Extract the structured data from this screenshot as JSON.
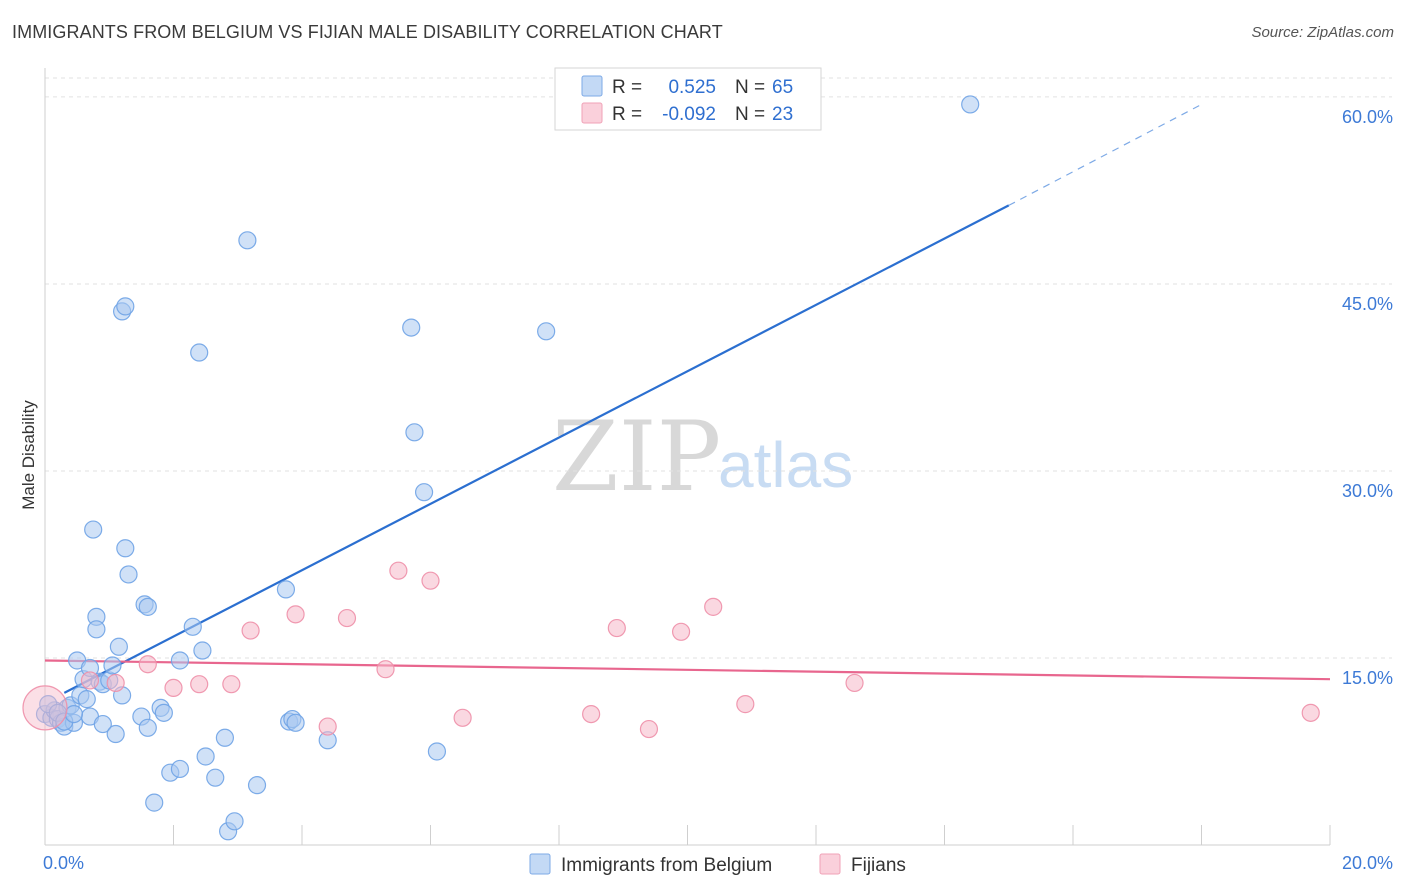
{
  "header": {
    "title": "IMMIGRANTS FROM BELGIUM VS FIJIAN MALE DISABILITY CORRELATION CHART",
    "source": "Source: ZipAtlas.com"
  },
  "watermark": {
    "zip": "ZIP",
    "atlas": "atlas"
  },
  "legend": {
    "r_label": "R =",
    "n_label": "N =",
    "rows": [
      {
        "r": "0.525",
        "n": "65",
        "color": "#a9c8f0"
      },
      {
        "r": "-0.092",
        "n": "23",
        "color": "#f6b8c8"
      }
    ]
  },
  "chart_data": {
    "type": "scatter",
    "title": "IMMIGRANTS FROM BELGIUM VS FIJIAN MALE DISABILITY CORRELATION CHART",
    "xlabel": "",
    "ylabel": "Male Disability",
    "xlim": [
      0,
      20
    ],
    "ylim": [
      0,
      62
    ],
    "x_tick_labels": [
      "0.0%",
      "20.0%"
    ],
    "y_ticks": [
      15,
      30,
      45,
      60
    ],
    "y_tick_labels": [
      "15.0%",
      "30.0%",
      "45.0%",
      "60.0%"
    ],
    "grid": true,
    "legend_position": "top-center",
    "series": [
      {
        "name": "Immigrants from Belgium",
        "color": "#6fa3e6",
        "fill": "#a9c8f0",
        "trend": {
          "x": [
            0.3,
            15.0
          ],
          "y": [
            12.2,
            51.3
          ],
          "dashed_to": [
            18.0,
            59.4
          ],
          "color": "#2b6fd0"
        },
        "points": [
          [
            0.0,
            10.5
          ],
          [
            0.1,
            10.2
          ],
          [
            0.15,
            10.8
          ],
          [
            0.2,
            10.1
          ],
          [
            0.25,
            9.8
          ],
          [
            0.3,
            9.5
          ],
          [
            0.35,
            11.0
          ],
          [
            0.4,
            11.2
          ],
          [
            0.45,
            9.8
          ],
          [
            0.5,
            14.8
          ],
          [
            0.55,
            12.0
          ],
          [
            0.6,
            13.3
          ],
          [
            0.65,
            11.7
          ],
          [
            0.7,
            14.2
          ],
          [
            0.7,
            10.3
          ],
          [
            0.75,
            25.3
          ],
          [
            0.8,
            18.3
          ],
          [
            0.8,
            17.3
          ],
          [
            0.85,
            13.1
          ],
          [
            0.9,
            12.9
          ],
          [
            0.9,
            9.7
          ],
          [
            1.0,
            13.2
          ],
          [
            1.05,
            14.4
          ],
          [
            1.1,
            8.9
          ],
          [
            1.15,
            15.9
          ],
          [
            1.2,
            12.0
          ],
          [
            1.2,
            42.8
          ],
          [
            1.25,
            43.2
          ],
          [
            1.25,
            23.8
          ],
          [
            1.3,
            21.7
          ],
          [
            1.5,
            10.3
          ],
          [
            1.55,
            19.3
          ],
          [
            1.6,
            19.1
          ],
          [
            1.6,
            9.4
          ],
          [
            1.7,
            3.4
          ],
          [
            1.8,
            11.0
          ],
          [
            1.85,
            10.6
          ],
          [
            1.95,
            5.8
          ],
          [
            2.1,
            14.8
          ],
          [
            2.1,
            6.1
          ],
          [
            2.3,
            17.5
          ],
          [
            2.4,
            39.5
          ],
          [
            2.45,
            15.6
          ],
          [
            2.5,
            7.1
          ],
          [
            2.65,
            5.4
          ],
          [
            2.8,
            8.6
          ],
          [
            2.85,
            1.1
          ],
          [
            2.95,
            1.9
          ],
          [
            3.15,
            48.5
          ],
          [
            3.3,
            4.8
          ],
          [
            3.75,
            20.5
          ],
          [
            3.8,
            9.9
          ],
          [
            3.85,
            10.1
          ],
          [
            3.9,
            9.8
          ],
          [
            4.4,
            8.4
          ],
          [
            5.7,
            41.5
          ],
          [
            5.75,
            33.1
          ],
          [
            5.9,
            28.3
          ],
          [
            6.1,
            7.5
          ],
          [
            7.8,
            41.2
          ],
          [
            14.4,
            59.4
          ],
          [
            0.05,
            11.3
          ],
          [
            0.2,
            10.6
          ],
          [
            0.3,
            9.9
          ],
          [
            0.45,
            10.5
          ]
        ]
      },
      {
        "name": "Fijians",
        "color": "#ee8fa8",
        "fill": "#f6b8c8",
        "trend": {
          "x": [
            0.0,
            20.0
          ],
          "y": [
            14.8,
            13.3
          ],
          "color": "#e8668e"
        },
        "points": [
          [
            0.0,
            11.0
          ],
          [
            0.7,
            13.2
          ],
          [
            1.1,
            13.0
          ],
          [
            1.6,
            14.5
          ],
          [
            2.0,
            12.6
          ],
          [
            2.4,
            12.9
          ],
          [
            2.9,
            12.9
          ],
          [
            3.2,
            17.2
          ],
          [
            3.9,
            18.5
          ],
          [
            4.4,
            9.5
          ],
          [
            4.7,
            18.2
          ],
          [
            5.3,
            14.1
          ],
          [
            5.5,
            22.0
          ],
          [
            6.0,
            21.2
          ],
          [
            6.5,
            10.2
          ],
          [
            8.5,
            10.5
          ],
          [
            8.9,
            17.4
          ],
          [
            9.4,
            9.3
          ],
          [
            9.9,
            17.1
          ],
          [
            10.4,
            19.1
          ],
          [
            10.9,
            11.3
          ],
          [
            12.6,
            13.0
          ],
          [
            19.7,
            10.6
          ]
        ]
      }
    ]
  }
}
